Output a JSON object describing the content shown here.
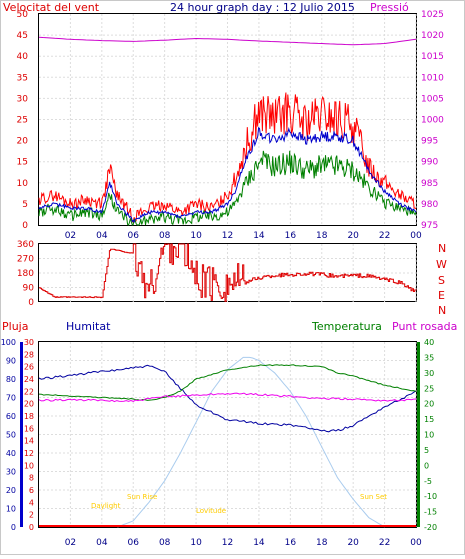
{
  "header": {
    "wind_label": "Velocitat del vent",
    "title": "24 hour graph day : 12 Julio 2015",
    "pressure_label": "Pressió"
  },
  "labels2": {
    "rain": "Pluja",
    "humidity": "Humitat",
    "temperature": "Temperatura",
    "dewpoint": "Punt rosada"
  },
  "sun_labels": {
    "first_light": "Daylight",
    "sunrise": "Sun Rise",
    "solar_noon": "Lovitude",
    "sunset": "Sun Set"
  },
  "colors": {
    "wind_gust": "#ff0000",
    "wind_avg": "#0000cc",
    "wind_speed": "#008000",
    "pressure": "#cc00cc",
    "direction": "#dd0000",
    "humidity": "#0000a0",
    "temperature": "#008000",
    "dewpoint": "#ee00ee",
    "solar": "#aaccee",
    "rain": "#ff0000",
    "sun_text": "#ffcc00"
  },
  "chart_data": [
    {
      "type": "line",
      "name": "wind_pressure",
      "x_ticks": [
        "02",
        "04",
        "06",
        "08",
        "10",
        "12",
        "14",
        "16",
        "18",
        "20",
        "22",
        "00"
      ],
      "y_left": {
        "ticks": [
          0,
          5,
          10,
          15,
          20,
          25,
          30,
          35,
          40,
          45,
          50
        ],
        "range": [
          0,
          50
        ]
      },
      "y_right": {
        "ticks": [
          975,
          980,
          985,
          990,
          995,
          1000,
          1005,
          1010,
          1015,
          1020,
          1025
        ],
        "range": [
          975,
          1025
        ]
      },
      "grid": true,
      "series": [
        {
          "key": "gust",
          "x": [
            0,
            1,
            2,
            3,
            4,
            4.5,
            5,
            6,
            7,
            8,
            9,
            10,
            11,
            12,
            12.5,
            13,
            14,
            15,
            16,
            17,
            18,
            19,
            20,
            21,
            22,
            23,
            24
          ],
          "y": [
            6,
            7,
            5,
            6,
            5,
            13,
            7,
            2,
            4,
            5,
            3,
            5,
            4,
            7,
            11,
            17,
            27,
            25,
            27,
            24,
            26,
            25,
            24,
            14,
            10,
            7,
            5
          ]
        },
        {
          "key": "avg",
          "x": [
            0,
            1,
            2,
            3,
            4,
            4.5,
            5,
            6,
            7,
            8,
            9,
            10,
            11,
            12,
            12.5,
            13,
            14,
            15,
            16,
            17,
            18,
            19,
            20,
            21,
            22,
            23,
            24
          ],
          "y": [
            4,
            5,
            4,
            4,
            3,
            10,
            5,
            1,
            3,
            3,
            2,
            3,
            3,
            5,
            8,
            14,
            22,
            20,
            22,
            20,
            21,
            21,
            20,
            13,
            8,
            5,
            3
          ]
        },
        {
          "key": "speed",
          "x": [
            0,
            1,
            2,
            3,
            4,
            4.5,
            5,
            6,
            7,
            8,
            9,
            10,
            11,
            12,
            12.5,
            13,
            14,
            15,
            16,
            17,
            18,
            19,
            20,
            21,
            22,
            23,
            24
          ],
          "y": [
            3,
            4,
            2,
            3,
            2,
            7,
            3,
            0,
            1,
            2,
            1,
            2,
            2,
            3,
            5,
            9,
            15,
            14,
            15,
            13,
            14,
            14,
            13,
            9,
            5,
            4,
            2
          ]
        },
        {
          "key": "pressure",
          "x": [
            0,
            2,
            4,
            6,
            8,
            10,
            12,
            14,
            16,
            18,
            20,
            22,
            24
          ],
          "y": [
            1019.5,
            1019,
            1018.7,
            1018.5,
            1018.8,
            1019.2,
            1019,
            1018.6,
            1018.3,
            1018,
            1017.7,
            1018,
            1019
          ]
        }
      ]
    },
    {
      "type": "line",
      "name": "wind_direction",
      "y_ticks": [
        0,
        90,
        180,
        270,
        360
      ],
      "y_cardinals": [
        "N",
        "W",
        "S",
        "E",
        "N"
      ],
      "range": [
        0,
        360
      ],
      "series": [
        {
          "key": "direction",
          "x": [
            0,
            1,
            2,
            3,
            4,
            4.5,
            5,
            6,
            7,
            8,
            9,
            10,
            11,
            12,
            12.5,
            13,
            14,
            15,
            16,
            17,
            18,
            19,
            20,
            21,
            22,
            23,
            24
          ],
          "y": [
            90,
            30,
            30,
            30,
            30,
            330,
            320,
            300,
            60,
            350,
            350,
            150,
            110,
            110,
            130,
            120,
            150,
            165,
            170,
            175,
            170,
            160,
            165,
            160,
            140,
            120,
            60
          ]
        }
      ]
    },
    {
      "type": "line",
      "name": "temp_humidity",
      "y_left_rain": {
        "ticks": [
          0,
          2,
          4,
          6,
          8,
          10,
          12,
          14,
          16,
          18,
          20,
          22,
          24,
          26,
          28,
          30
        ],
        "range": [
          0,
          30
        ]
      },
      "y_left_humidity": {
        "ticks": [
          0,
          10,
          20,
          30,
          40,
          50,
          60,
          70,
          80,
          90,
          100
        ],
        "range": [
          0,
          100
        ]
      },
      "y_right_temp": {
        "ticks": [
          -20,
          -15,
          -10,
          -5,
          0,
          5,
          10,
          15,
          20,
          25,
          30,
          35,
          40
        ],
        "range": [
          -20,
          40
        ]
      },
      "series": [
        {
          "key": "humidity",
          "x": [
            0,
            2,
            4,
            6,
            7,
            8,
            9,
            10,
            12,
            14,
            16,
            17,
            18,
            19,
            20,
            22,
            24
          ],
          "y": [
            80,
            82,
            84,
            86,
            87,
            84,
            75,
            66,
            58,
            56,
            55,
            54,
            52,
            52,
            55,
            65,
            73
          ]
        },
        {
          "key": "temperature",
          "x": [
            0,
            2,
            4,
            6,
            7,
            8,
            9,
            10,
            12,
            14,
            16,
            18,
            19,
            20,
            22,
            24
          ],
          "y": [
            23,
            22.5,
            22,
            21.5,
            21,
            22,
            24,
            28,
            31,
            32.5,
            32.5,
            32,
            30,
            29,
            26,
            24
          ]
        },
        {
          "key": "dewpoint",
          "x": [
            0,
            2,
            4,
            6,
            8,
            10,
            12,
            14,
            16,
            18,
            20,
            22,
            24
          ],
          "y": [
            21,
            21.3,
            21,
            20.8,
            22.3,
            22.8,
            23.3,
            23,
            22.3,
            21.7,
            21.5,
            21,
            21.3
          ]
        },
        {
          "key": "solar",
          "x": [
            5,
            6,
            7,
            8,
            9,
            10,
            11,
            12,
            13,
            13.5,
            14,
            15,
            16,
            17,
            18,
            19,
            20,
            21,
            22
          ],
          "y": [
            -20,
            -18,
            -12,
            -5,
            4,
            14,
            24,
            31,
            35,
            35,
            34,
            30,
            24,
            16,
            6,
            -4,
            -11,
            -17,
            -20
          ]
        },
        {
          "key": "rain",
          "x": [
            0,
            24
          ],
          "y": [
            0,
            0
          ]
        }
      ]
    }
  ]
}
